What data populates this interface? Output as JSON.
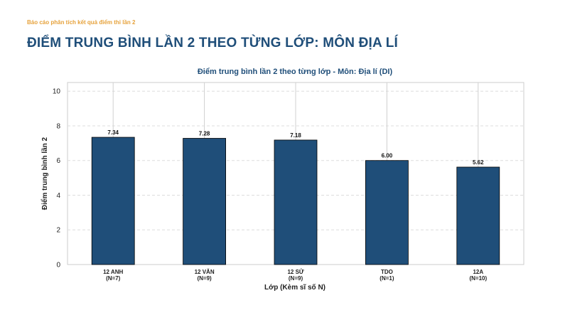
{
  "header": {
    "report_label": "Báo cáo phân tích kết quả điểm thi lần 2",
    "title": "ĐIỂM TRUNG BÌNH LẦN 2 THEO TỪNG LỚP: MÔN ĐỊA LÍ"
  },
  "colors": {
    "bar": "#1f4e79",
    "accent": "#e6a23c"
  },
  "chart_data": {
    "type": "bar",
    "title": "Điểm trung bình lần 2 theo từng lớp - Môn: Địa lí (DI)",
    "xlabel": "Lớp (Kèm sĩ số N)",
    "ylabel": "Điểm trung bình lần 2",
    "categories": [
      "12 ANH",
      "12 VĂN",
      "12 SỬ",
      "TDO",
      "12A"
    ],
    "category_counts": [
      "(N=7)",
      "(N=9)",
      "(N=9)",
      "(N=1)",
      "(N=10)"
    ],
    "values": [
      7.34,
      7.28,
      7.18,
      6.0,
      5.62
    ],
    "value_labels": [
      "7.34",
      "7.28",
      "7.18",
      "6.00",
      "5.62"
    ],
    "ylim": [
      0,
      10.5
    ],
    "yticks": [
      "0",
      "2",
      "4",
      "6",
      "8",
      "10"
    ],
    "grid": true
  }
}
